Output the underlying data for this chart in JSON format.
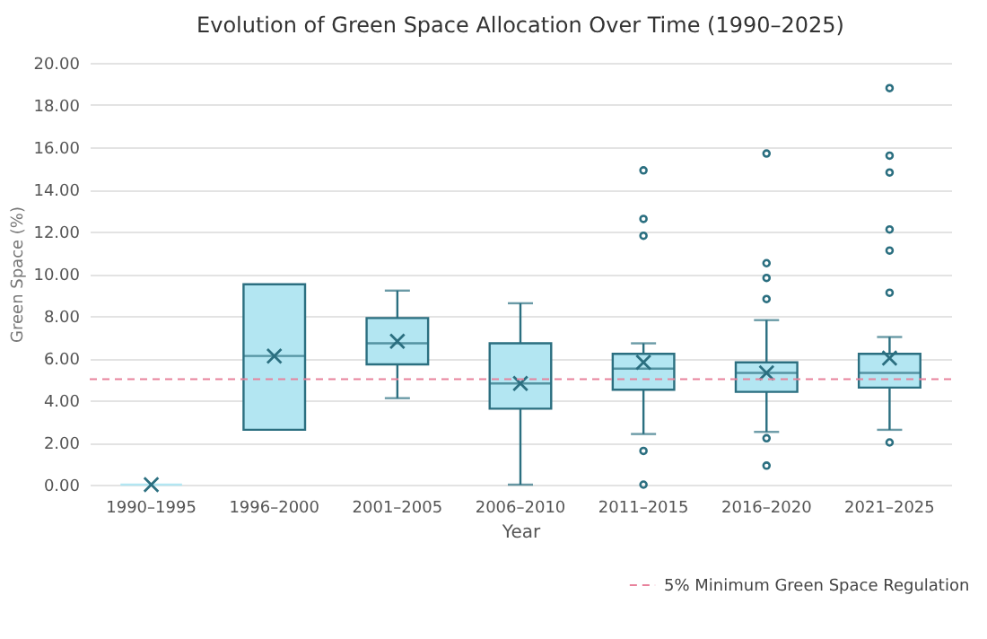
{
  "chart_data": {
    "type": "box",
    "title": "Evolution of Green Space Allocation Over Time (1990–2025)",
    "xlabel": "Year",
    "ylabel": "Green Space (%)",
    "categories": [
      "1990–1995",
      "1996–2000",
      "2001–2005",
      "2006–2010",
      "2011–2015",
      "2016–2020",
      "2021–2025"
    ],
    "series": [
      {
        "color": "#b3e6f2",
        "boxes": [
          {
            "low": 0,
            "q1": 0,
            "median": 0,
            "q3": 0,
            "high": 0,
            "mean": 0
          },
          {
            "low": 2.6,
            "q1": 2.6,
            "median": 6.1,
            "q3": 9.5,
            "high": 9.5,
            "mean": 6.1
          },
          {
            "low": 4.1,
            "q1": 5.7,
            "median": 6.7,
            "q3": 7.9,
            "high": 9.2,
            "mean": 6.8
          },
          {
            "low": 0,
            "q1": 3.6,
            "median": 4.8,
            "q3": 6.7,
            "high": 8.6,
            "mean": 4.8
          },
          {
            "low": 2.4,
            "q1": 4.5,
            "median": 5.5,
            "q3": 6.2,
            "high": 6.7,
            "mean": 5.8,
            "outliers": [
              14.9,
              12.6,
              11.8,
              1.6,
              0
            ]
          },
          {
            "low": 2.5,
            "q1": 4.4,
            "median": 5.3,
            "q3": 5.8,
            "high": 7.8,
            "mean": 5.3,
            "outliers": [
              15.7,
              10.5,
              9.8,
              8.8,
              2.2,
              0.9
            ]
          },
          {
            "low": 2.6,
            "q1": 4.6,
            "median": 5.3,
            "q3": 6.2,
            "high": 7.0,
            "mean": 6.0,
            "outliers": [
              18.8,
              15.6,
              14.8,
              12.1,
              11.1,
              9.1,
              2.0
            ]
          }
        ]
      }
    ],
    "ylim": [
      0,
      20
    ],
    "yticks": [
      {
        "value": 0,
        "label": "0.00"
      },
      {
        "value": 2,
        "label": "2.00"
      },
      {
        "value": 4,
        "label": "4.00"
      },
      {
        "value": 6,
        "label": "6.00"
      },
      {
        "value": 8,
        "label": "8.00"
      },
      {
        "value": 10,
        "label": "10.00"
      },
      {
        "value": 12,
        "label": "12.00"
      },
      {
        "value": 14,
        "label": "14.00"
      },
      {
        "value": 16,
        "label": "16.00"
      },
      {
        "value": 18,
        "label": "18.00"
      },
      {
        "value": 20,
        "label": "20.00"
      }
    ],
    "ref_lines": [
      {
        "axis": "y",
        "value": 5,
        "label": "5% Minimum Green Space Regulation",
        "color": "#e8829c",
        "line_style": "dashed"
      }
    ],
    "grid": "y",
    "legend": "bottom right"
  }
}
